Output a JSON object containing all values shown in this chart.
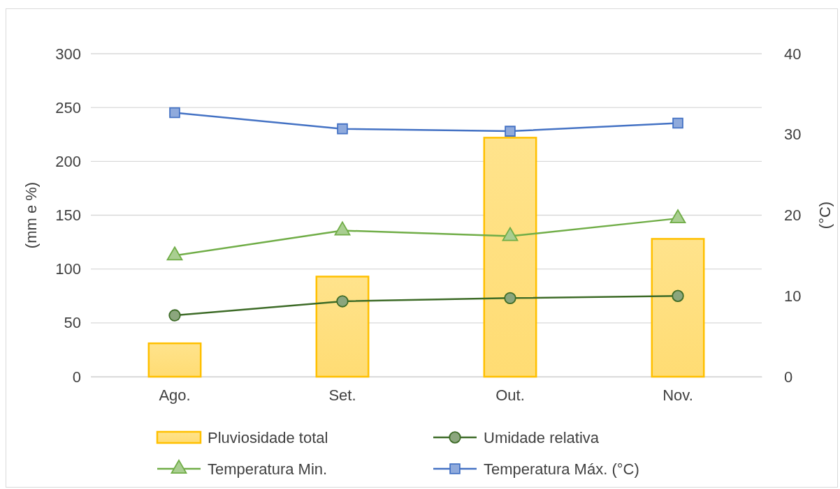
{
  "chart_data": {
    "type": "bar",
    "ylabel": "(mm e %)",
    "y2label": "(°C)",
    "categories": [
      "Ago.",
      "Set.",
      "Out.",
      "Nov."
    ],
    "series": [
      {
        "name": "Pluviosidade total",
        "color": "#ffc000",
        "values": [
          31,
          93,
          222,
          128
        ]
      },
      {
        "name": "Umidade relativa",
        "type": "line",
        "color": "#3d6b27",
        "marker": "circle",
        "values": [
          57,
          70,
          73,
          75
        ]
      },
      {
        "name": "Temperatura Min.",
        "type": "line",
        "color": "#70ad47",
        "marker": "triangle",
        "axis": "y2",
        "values": [
          15.0,
          18.1,
          17.4,
          19.6
        ]
      },
      {
        "name": "Temperatura Máx.  (°C)",
        "type": "line",
        "color": "#4472c4",
        "marker": "square",
        "axis": "y2",
        "values": [
          32.7,
          30.7,
          30.4,
          31.4
        ]
      }
    ],
    "ylim": [
      0,
      300
    ],
    "yticks": [
      0,
      50,
      100,
      150,
      200,
      250,
      300
    ],
    "y2lim": [
      0,
      40
    ],
    "y2ticks": [
      0,
      10,
      20,
      30,
      40
    ],
    "grid": "y",
    "legend": "bottom"
  }
}
